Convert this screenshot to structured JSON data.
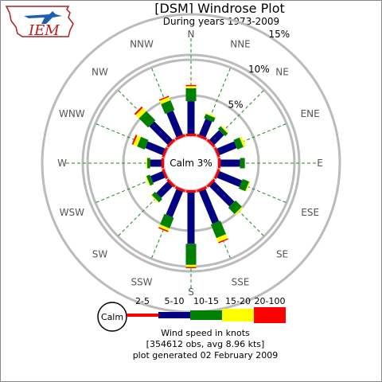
{
  "header": {
    "title": "[DSM] Windrose Plot",
    "subtitle": "During years 1973-2009",
    "logo_text": "IEM"
  },
  "chart_data": {
    "type": "windrose",
    "directions": [
      "N",
      "NNE",
      "NE",
      "ENE",
      "E",
      "ESE",
      "SE",
      "SSE",
      "S",
      "SSW",
      "SW",
      "WSW",
      "W",
      "WNW",
      "NW",
      "NNW"
    ],
    "ring_labels": [
      "5%",
      "10%",
      "15%"
    ],
    "ring_values": [
      5,
      10,
      15
    ],
    "calm": {
      "label": "Calm 3%",
      "value": 3
    },
    "bins": [
      {
        "name": "2-5",
        "color": "#ff0000"
      },
      {
        "name": "5-10",
        "color": "#000080"
      },
      {
        "name": "10-15",
        "color": "#008000"
      },
      {
        "name": "15-20",
        "color": "#ffff00"
      },
      {
        "name": "20-100",
        "color": "#ff0000"
      }
    ],
    "series": [
      {
        "direction": "N",
        "values": [
          0.3,
          4.0,
          1.6,
          0.3,
          0.1
        ]
      },
      {
        "direction": "NNE",
        "values": [
          0.3,
          2.1,
          0.6,
          0.1,
          0.0
        ]
      },
      {
        "direction": "NE",
        "values": [
          0.3,
          1.7,
          0.5,
          0.1,
          0.0
        ]
      },
      {
        "direction": "ENE",
        "values": [
          0.3,
          2.3,
          0.8,
          0.3,
          0.0
        ]
      },
      {
        "direction": "E",
        "values": [
          0.3,
          2.4,
          0.6,
          0.0,
          0.0
        ]
      },
      {
        "direction": "ESE",
        "values": [
          0.3,
          3.0,
          0.9,
          0.1,
          0.0
        ]
      },
      {
        "direction": "SE",
        "values": [
          0.3,
          3.5,
          1.1,
          0.2,
          0.0
        ]
      },
      {
        "direction": "SSE",
        "values": [
          0.3,
          4.3,
          1.8,
          0.6,
          0.1
        ]
      },
      {
        "direction": "S",
        "values": [
          0.3,
          6.3,
          2.6,
          0.3,
          0.1
        ]
      },
      {
        "direction": "SSW",
        "values": [
          0.3,
          3.4,
          1.4,
          0.4,
          0.1
        ]
      },
      {
        "direction": "SW",
        "values": [
          0.3,
          2.0,
          0.6,
          0.1,
          0.0
        ]
      },
      {
        "direction": "WSW",
        "values": [
          0.3,
          1.6,
          0.5,
          0.1,
          0.0
        ]
      },
      {
        "direction": "W",
        "values": [
          0.3,
          1.4,
          0.4,
          0.1,
          0.0
        ]
      },
      {
        "direction": "WNW",
        "values": [
          0.3,
          2.3,
          1.0,
          0.5,
          0.2
        ]
      },
      {
        "direction": "NW",
        "values": [
          0.3,
          3.2,
          1.6,
          0.6,
          0.2
        ]
      },
      {
        "direction": "NNW",
        "values": [
          0.3,
          3.2,
          1.3,
          0.5,
          0.1
        ]
      }
    ]
  },
  "legend": {
    "calm_label": "Calm",
    "title": "Wind speed in knots",
    "obs_line": "[354612 obs, avg 8.96 kts]",
    "generated_line": "plot generated 02 February 2009"
  }
}
